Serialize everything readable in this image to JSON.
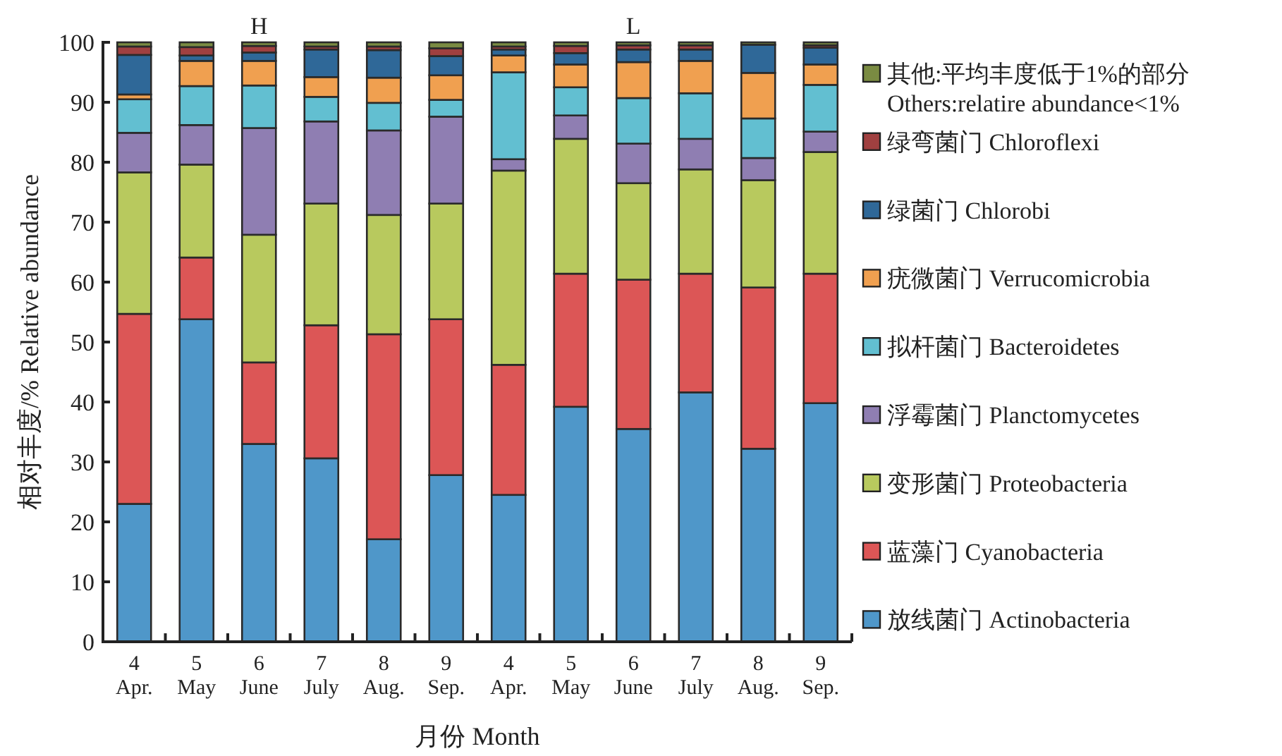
{
  "chart_data": {
    "type": "bar",
    "stacked": true,
    "legend": "right",
    "xlabel": "月份 Month",
    "ylabel": "相对丰度/% Relative abundance",
    "annotations": [
      "H",
      "L"
    ],
    "categories": [
      "4\nApr.",
      "5\nMay",
      "6\nJune",
      "7\nJuly",
      "8\nAug.",
      "9\nSep.",
      "4\nApr.",
      "5\nMay",
      "6\nJune",
      "7\nJuly",
      "8\nAug.",
      "9\nSep."
    ],
    "ylim": [
      0,
      100
    ],
    "yticks": [
      0,
      10,
      20,
      30,
      40,
      50,
      60,
      70,
      80,
      90,
      100
    ],
    "series": [
      {
        "name": "放线菌门 Actinobacteria",
        "color": "#4f97c9",
        "values": [
          23,
          53.8,
          33,
          30.6,
          17.1,
          27.8,
          24.5,
          39.2,
          35.5,
          41.6,
          32.2,
          39.8
        ]
      },
      {
        "name": "蓝藻门 Cyanobacteria",
        "color": "#dc5656",
        "values": [
          31.7,
          10.3,
          13.6,
          22.2,
          34.2,
          26,
          21.7,
          22.2,
          24.9,
          19.8,
          26.9,
          21.6
        ]
      },
      {
        "name": "变形菌门 Proteobacteria",
        "color": "#b8c95e",
        "values": [
          23.6,
          15.5,
          21.3,
          20.3,
          19.9,
          19.3,
          32.4,
          22.5,
          16.1,
          17.4,
          17.9,
          20.3
        ]
      },
      {
        "name": "浮霉菌门 Planctomycetes",
        "color": "#8f7eb2",
        "values": [
          6.6,
          6.6,
          17.8,
          13.7,
          14.1,
          14.5,
          1.9,
          3.9,
          6.6,
          5.1,
          3.7,
          3.4
        ]
      },
      {
        "name": "拟杆菌门 Bacteroidetes",
        "color": "#62bfd1",
        "values": [
          5.6,
          6.5,
          7.1,
          4.1,
          4.6,
          2.8,
          14.5,
          4.7,
          7.6,
          7.6,
          6.6,
          7.8
        ]
      },
      {
        "name": "疣微菌门 Verrucomicrobia",
        "color": "#f0a050",
        "values": [
          0.8,
          4.2,
          4.1,
          3.3,
          4.2,
          4.1,
          2.8,
          3.8,
          6.0,
          5.4,
          7.6,
          3.4
        ]
      },
      {
        "name": "绿菌门 Chlorobi",
        "color": "#2f6898",
        "values": [
          6.6,
          0.9,
          1.4,
          4.6,
          4.6,
          3.2,
          1.0,
          1.9,
          2.1,
          1.9,
          4.7,
          2.8
        ]
      },
      {
        "name": "绿弯菌门 Chloroflexi",
        "color": "#a04040",
        "values": [
          1.4,
          1.4,
          1.1,
          0.5,
          0.6,
          1.3,
          0.5,
          1.2,
          0.7,
          0.7,
          0,
          0.4
        ]
      },
      {
        "name": "其他:平均丰度低于1%的部分\nOthers:relatire abundance<1%",
        "color": "#7a8b42",
        "values": [
          0.7,
          0.8,
          0.6,
          0.7,
          0.7,
          1.0,
          0.7,
          0.6,
          0.5,
          0.5,
          0.4,
          0.5
        ]
      }
    ]
  }
}
